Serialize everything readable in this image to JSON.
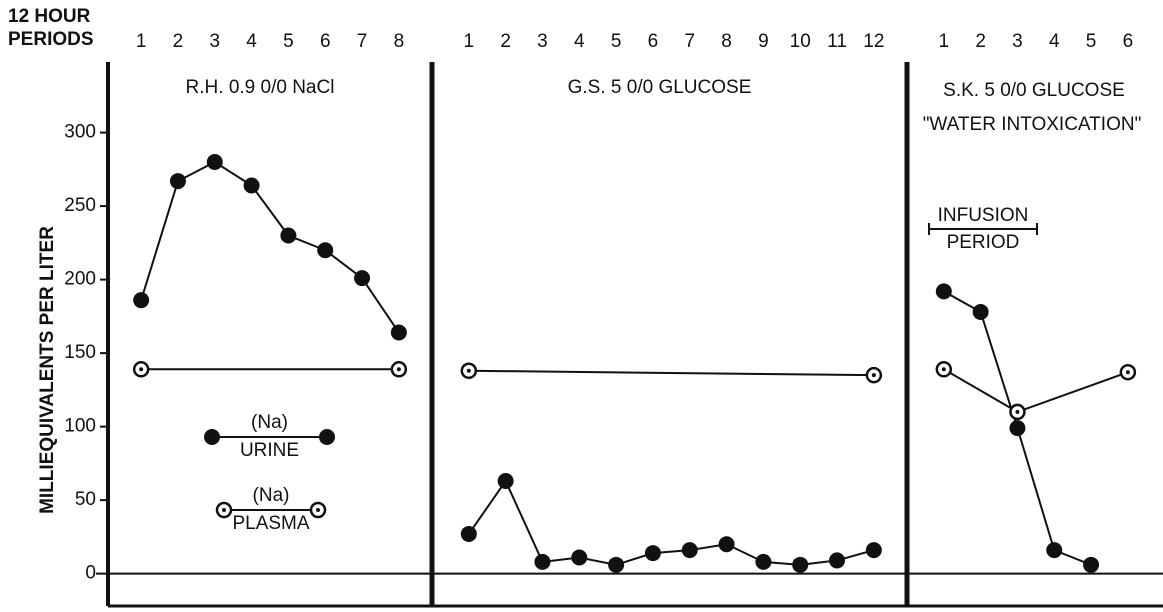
{
  "x_label": [
    "12 HOUR",
    "PERIODS"
  ],
  "y_label": "MILLIEQUIVALENTS PER LITER",
  "ylim": [
    -22,
    348
  ],
  "yticks": [
    0,
    50,
    100,
    150,
    200,
    250,
    300
  ],
  "legend_prefix": "(Na)",
  "chart_data": [
    {
      "type": "line",
      "title": "R.H. 0.9 0/0 NaCl",
      "xlim": [
        0.1,
        8.9
      ],
      "xticks": [
        1,
        2,
        3,
        4,
        5,
        6,
        7,
        8
      ],
      "series": [
        {
          "name": "URINE",
          "color": "#111111",
          "marker": "filled",
          "x": [
            1,
            2,
            3,
            4,
            5,
            6,
            7,
            8
          ],
          "values": [
            186,
            267,
            280,
            264,
            230,
            220,
            201,
            164
          ]
        },
        {
          "name": "PLASMA",
          "color": "#111111",
          "marker": "dotted",
          "x": [
            1,
            8
          ],
          "values": [
            139,
            139
          ]
        }
      ]
    },
    {
      "type": "line",
      "title": "G.S. 5 0/0 GLUCOSE",
      "xlim": [
        0,
        12.9
      ],
      "xticks": [
        1,
        2,
        3,
        4,
        5,
        6,
        7,
        8,
        9,
        10,
        11,
        12
      ],
      "series": [
        {
          "name": "URINE",
          "color": "#111111",
          "marker": "filled",
          "x": [
            1,
            2,
            3,
            4,
            5,
            6,
            7,
            8,
            9,
            10,
            11,
            12
          ],
          "values": [
            27,
            63,
            8,
            11,
            6,
            14,
            16,
            20,
            8,
            6,
            9,
            16
          ]
        },
        {
          "name": "PLASMA",
          "color": "#111111",
          "marker": "dotted",
          "x": [
            1,
            12
          ],
          "values": [
            138,
            135
          ]
        }
      ]
    },
    {
      "type": "line",
      "title": "S.K. 5 0/0 GLUCOSE",
      "subtitle": "\"WATER INTOXICATION\"",
      "annotation": [
        "INFUSION",
        "PERIOD"
      ],
      "xlim": [
        0,
        6.9
      ],
      "xticks": [
        1,
        2,
        3,
        4,
        5,
        6
      ],
      "series": [
        {
          "name": "URINE",
          "color": "#111111",
          "marker": "filled",
          "x": [
            1,
            2,
            3,
            4,
            5
          ],
          "values": [
            192,
            178,
            99,
            16,
            6
          ]
        },
        {
          "name": "PLASMA",
          "color": "#111111",
          "marker": "dotted",
          "x": [
            1,
            3,
            6
          ],
          "values": [
            139,
            110,
            137
          ]
        }
      ]
    }
  ]
}
